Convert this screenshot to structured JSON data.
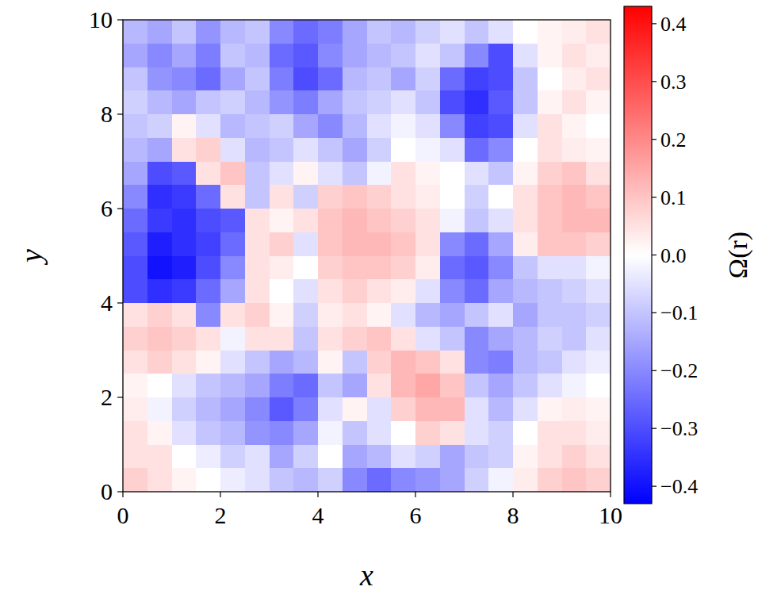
{
  "chart_data": {
    "type": "heatmap",
    "x_label": "x",
    "y_label": "y",
    "xlim": [
      0,
      10
    ],
    "ylim": [
      0,
      10
    ],
    "xticks": [
      0,
      2,
      4,
      6,
      8,
      10
    ],
    "yticks": [
      0,
      2,
      4,
      6,
      8,
      10
    ],
    "color": "bwr",
    "x": [
      0.25,
      0.75,
      1.25,
      1.75,
      2.25,
      2.75,
      3.25,
      3.75,
      4.25,
      4.75,
      5.25,
      5.75,
      6.25,
      6.75,
      7.25,
      7.75,
      8.25,
      8.75,
      9.25,
      9.75
    ],
    "y": [
      9.75,
      9.25,
      8.75,
      8.25,
      7.75,
      7.25,
      6.75,
      6.25,
      5.75,
      5.25,
      4.75,
      4.25,
      3.75,
      3.25,
      2.75,
      2.25,
      1.75,
      1.25,
      0.75,
      0.25
    ],
    "values": [
      [
        -0.12,
        -0.15,
        -0.1,
        -0.18,
        -0.12,
        -0.1,
        -0.2,
        -0.25,
        -0.22,
        -0.15,
        -0.1,
        -0.12,
        -0.08,
        -0.05,
        -0.1,
        -0.05,
        0.0,
        0.02,
        0.03,
        0.05
      ],
      [
        -0.15,
        -0.2,
        -0.15,
        -0.22,
        -0.1,
        -0.12,
        -0.25,
        -0.28,
        -0.2,
        -0.15,
        -0.12,
        -0.1,
        -0.05,
        -0.1,
        -0.2,
        -0.3,
        -0.05,
        0.02,
        0.05,
        0.03
      ],
      [
        -0.1,
        -0.18,
        -0.2,
        -0.25,
        -0.15,
        -0.1,
        -0.22,
        -0.3,
        -0.25,
        -0.12,
        -0.1,
        -0.15,
        -0.08,
        -0.25,
        -0.32,
        -0.3,
        -0.1,
        0.0,
        0.03,
        0.05
      ],
      [
        -0.08,
        -0.12,
        -0.15,
        -0.1,
        -0.08,
        -0.12,
        -0.18,
        -0.22,
        -0.15,
        -0.1,
        -0.08,
        -0.05,
        -0.1,
        -0.3,
        -0.35,
        -0.28,
        -0.1,
        0.02,
        0.05,
        0.02
      ],
      [
        -0.1,
        -0.08,
        0.02,
        -0.05,
        -0.12,
        -0.1,
        -0.08,
        -0.15,
        -0.2,
        -0.12,
        -0.05,
        -0.02,
        -0.05,
        -0.2,
        -0.32,
        -0.3,
        -0.05,
        0.05,
        0.02,
        0.0
      ],
      [
        -0.12,
        -0.15,
        0.05,
        0.08,
        -0.05,
        -0.12,
        -0.1,
        -0.05,
        -0.1,
        -0.15,
        -0.08,
        0.0,
        -0.02,
        -0.05,
        -0.25,
        -0.2,
        0.0,
        0.05,
        0.03,
        0.02
      ],
      [
        -0.15,
        -0.3,
        -0.28,
        0.05,
        0.1,
        -0.1,
        -0.05,
        0.02,
        -0.05,
        -0.1,
        -0.02,
        0.05,
        0.02,
        0.0,
        -0.05,
        -0.1,
        0.02,
        0.08,
        0.1,
        0.05
      ],
      [
        -0.2,
        -0.35,
        -0.33,
        -0.25,
        0.05,
        -0.1,
        0.05,
        -0.08,
        0.08,
        0.1,
        0.08,
        0.05,
        0.03,
        0.0,
        -0.08,
        0.0,
        0.05,
        0.1,
        0.12,
        0.1
      ],
      [
        -0.25,
        -0.33,
        -0.35,
        -0.3,
        -0.28,
        0.05,
        0.02,
        0.05,
        0.1,
        0.12,
        0.1,
        0.08,
        0.05,
        -0.02,
        -0.1,
        -0.05,
        0.05,
        0.1,
        0.12,
        0.12
      ],
      [
        -0.28,
        -0.38,
        -0.35,
        -0.32,
        -0.25,
        0.05,
        0.08,
        -0.05,
        0.1,
        0.12,
        0.12,
        0.1,
        0.05,
        -0.2,
        -0.25,
        -0.15,
        0.03,
        0.1,
        0.1,
        0.08
      ],
      [
        -0.3,
        -0.4,
        -0.38,
        -0.3,
        -0.2,
        0.05,
        0.03,
        0.0,
        0.08,
        0.1,
        0.1,
        0.08,
        0.03,
        -0.25,
        -0.28,
        -0.2,
        -0.1,
        -0.05,
        -0.05,
        -0.02
      ],
      [
        -0.3,
        -0.35,
        -0.33,
        -0.25,
        -0.15,
        0.05,
        0.0,
        -0.05,
        0.05,
        0.08,
        0.05,
        0.03,
        -0.05,
        -0.2,
        -0.25,
        -0.15,
        -0.12,
        -0.1,
        -0.08,
        -0.05
      ],
      [
        0.05,
        0.08,
        0.05,
        -0.2,
        0.05,
        0.08,
        0.02,
        -0.08,
        0.03,
        0.05,
        0.02,
        -0.05,
        -0.12,
        -0.15,
        -0.1,
        -0.05,
        -0.15,
        -0.1,
        -0.1,
        -0.08
      ],
      [
        0.08,
        0.1,
        0.08,
        0.05,
        -0.02,
        0.05,
        0.05,
        -0.1,
        0.05,
        0.08,
        0.1,
        0.05,
        -0.05,
        -0.1,
        -0.2,
        -0.15,
        -0.12,
        -0.08,
        -0.1,
        -0.05
      ],
      [
        0.05,
        0.08,
        0.05,
        0.02,
        -0.05,
        -0.1,
        -0.15,
        -0.12,
        0.02,
        -0.1,
        0.08,
        0.12,
        0.1,
        0.05,
        -0.2,
        -0.22,
        -0.12,
        -0.1,
        -0.05,
        -0.03
      ],
      [
        0.02,
        0.0,
        -0.05,
        -0.1,
        -0.12,
        -0.15,
        -0.22,
        -0.25,
        -0.1,
        -0.15,
        0.05,
        0.12,
        0.15,
        0.1,
        -0.1,
        -0.15,
        -0.1,
        -0.05,
        -0.02,
        0.0
      ],
      [
        0.03,
        -0.02,
        -0.08,
        -0.12,
        -0.15,
        -0.2,
        -0.28,
        -0.22,
        -0.05,
        0.02,
        -0.05,
        0.08,
        0.12,
        0.12,
        -0.05,
        -0.12,
        -0.05,
        0.02,
        0.03,
        0.02
      ],
      [
        0.05,
        0.02,
        -0.05,
        -0.1,
        -0.12,
        -0.18,
        -0.2,
        -0.15,
        -0.02,
        -0.1,
        -0.05,
        0.0,
        0.08,
        0.05,
        -0.05,
        -0.08,
        0.0,
        0.05,
        0.05,
        0.03
      ],
      [
        0.05,
        0.05,
        0.0,
        -0.03,
        -0.08,
        -0.05,
        -0.15,
        -0.08,
        0.0,
        -0.15,
        -0.12,
        -0.05,
        -0.08,
        -0.15,
        -0.1,
        -0.08,
        0.02,
        0.05,
        0.08,
        0.05
      ],
      [
        0.08,
        0.05,
        0.02,
        0.0,
        -0.03,
        -0.05,
        -0.1,
        -0.12,
        -0.08,
        -0.2,
        -0.25,
        -0.2,
        -0.18,
        -0.15,
        -0.08,
        -0.02,
        0.03,
        0.08,
        0.1,
        0.08
      ]
    ],
    "colorbar": {
      "label": "Ω(r)",
      "range": [
        -0.43,
        0.43
      ],
      "ticks": [
        {
          "value": -0.4,
          "label": "−0.4"
        },
        {
          "value": -0.3,
          "label": "−0.3"
        },
        {
          "value": -0.2,
          "label": "−0.2"
        },
        {
          "value": -0.1,
          "label": "−0.1"
        },
        {
          "value": 0.0,
          "label": "0.0"
        },
        0.1,
        0.2,
        0.3,
        0.4
      ]
    }
  }
}
